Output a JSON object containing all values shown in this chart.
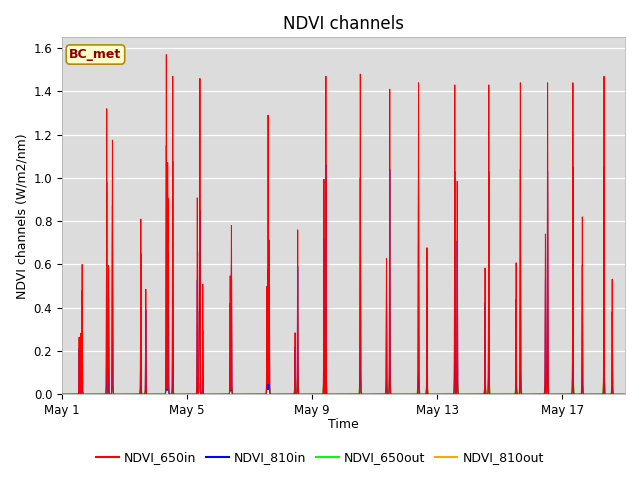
{
  "title": "NDVI channels",
  "ylabel": "NDVI channels (W/m2/nm)",
  "xlabel": "Time",
  "legend_label": "BC_met",
  "series_labels": [
    "NDVI_650in",
    "NDVI_810in",
    "NDVI_650out",
    "NDVI_810out"
  ],
  "series_colors": [
    "red",
    "blue",
    "lime",
    "orange"
  ],
  "ylim": [
    0.0,
    1.65
  ],
  "background_color": "#dcdcdc",
  "n_days": 18,
  "tick_days": [
    1,
    5,
    9,
    13,
    17
  ],
  "title_fontsize": 12,
  "label_fontsize": 9,
  "legend_fontsize": 9,
  "red_peaks": [
    0.6,
    1.32,
    0.81,
    1.57,
    1.46,
    0.78,
    1.29,
    0.76,
    1.47,
    1.48,
    1.41,
    1.44,
    1.43,
    1.43,
    1.44,
    1.44,
    1.44,
    1.47
  ],
  "blue_peaks": [
    0.48,
    0.98,
    0.65,
    1.15,
    0.85,
    0.6,
    0.58,
    0.59,
    1.06,
    1.0,
    1.04,
    1.05,
    1.03,
    1.03,
    1.04,
    1.03,
    1.05,
    1.05
  ],
  "green_peaks": [
    0.02,
    0.03,
    0.03,
    0.03,
    0.04,
    0.03,
    0.07,
    0.08,
    0.08,
    0.08,
    0.08,
    0.08,
    0.08,
    0.08,
    0.08,
    0.08,
    0.08,
    0.08
  ],
  "orange_peaks": [
    0.03,
    0.04,
    0.04,
    0.05,
    0.05,
    0.04,
    0.09,
    0.1,
    0.1,
    0.1,
    0.1,
    0.1,
    0.1,
    0.1,
    0.1,
    0.1,
    0.1,
    0.1
  ],
  "spikes_per_day": [
    3,
    4,
    2,
    5,
    4,
    2,
    3,
    2,
    2,
    2,
    2,
    2,
    2,
    2,
    2,
    2,
    2,
    2
  ]
}
